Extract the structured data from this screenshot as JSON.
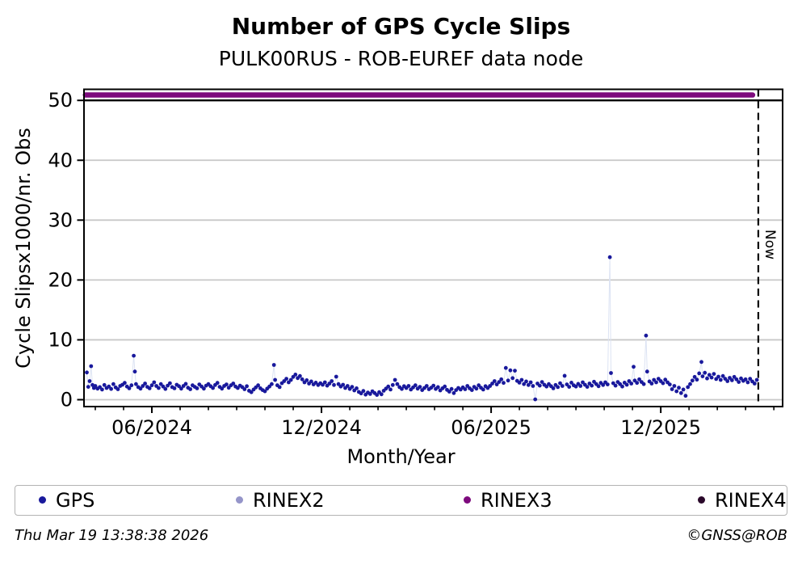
{
  "header": {
    "title": "Number of GPS Cycle Slips",
    "subtitle": "PULK00RUS - ROB-EUREF data node"
  },
  "chart_data": {
    "type": "scatter",
    "title": "Number of GPS Cycle Slips",
    "subtitle": "PULK00RUS - ROB-EUREF data node",
    "xlabel": "Month/Year",
    "ylabel": "Cycle Slipsx1000/nr. Obs",
    "x_unit": "months since 2024-04-01",
    "x_range": [
      -0.4,
      24.31
    ],
    "y_range": [
      -1.15,
      51.85
    ],
    "y_ticks": [
      0,
      10,
      20,
      30,
      40,
      50
    ],
    "x_major_ticks": [
      {
        "t": 2,
        "label": "06/2024"
      },
      {
        "t": 8,
        "label": "12/2024"
      },
      {
        "t": 14,
        "label": "06/2025"
      },
      {
        "t": 20,
        "label": "12/2025"
      }
    ],
    "x_minor_ticks_every_month": true,
    "grid": "horizontal",
    "grid_color": "#c8c8c8",
    "now_line": {
      "t": 23.45,
      "label": "Now"
    },
    "reference_line": {
      "y": 50,
      "color": "#000000"
    },
    "rinex3_line": {
      "y": 50.9,
      "t_start": -0.35,
      "t_end": 23.25,
      "color": "#7d0a7d"
    },
    "gps_color": "#19199c",
    "gps_connector_color": "#dce3f3",
    "gps_points": [
      [
        -0.3,
        4.55
      ],
      [
        -0.25,
        2.15
      ],
      [
        -0.2,
        3.1
      ],
      [
        -0.15,
        5.6
      ],
      [
        -0.1,
        2.45
      ],
      [
        -0.05,
        1.95
      ],
      [
        0.0,
        2.3
      ],
      [
        0.08,
        1.85
      ],
      [
        0.16,
        2.1
      ],
      [
        0.24,
        1.7
      ],
      [
        0.32,
        2.45
      ],
      [
        0.4,
        1.95
      ],
      [
        0.48,
        2.2
      ],
      [
        0.56,
        1.8
      ],
      [
        0.64,
        2.6
      ],
      [
        0.72,
        2.05
      ],
      [
        0.8,
        1.75
      ],
      [
        0.88,
        2.3
      ],
      [
        0.96,
        2.5
      ],
      [
        1.04,
        2.8
      ],
      [
        1.12,
        2.2
      ],
      [
        1.2,
        1.9
      ],
      [
        1.28,
        2.4
      ],
      [
        1.36,
        7.35
      ],
      [
        1.4,
        4.7
      ],
      [
        1.44,
        2.6
      ],
      [
        1.52,
        2.1
      ],
      [
        1.6,
        1.85
      ],
      [
        1.68,
        2.3
      ],
      [
        1.76,
        2.7
      ],
      [
        1.84,
        2.15
      ],
      [
        1.92,
        1.9
      ],
      [
        2.0,
        2.4
      ],
      [
        2.08,
        2.9
      ],
      [
        2.16,
        2.3
      ],
      [
        2.24,
        1.95
      ],
      [
        2.32,
        2.6
      ],
      [
        2.4,
        2.2
      ],
      [
        2.48,
        1.8
      ],
      [
        2.56,
        2.35
      ],
      [
        2.64,
        2.75
      ],
      [
        2.72,
        2.1
      ],
      [
        2.8,
        1.9
      ],
      [
        2.88,
        2.5
      ],
      [
        2.96,
        2.25
      ],
      [
        3.04,
        1.85
      ],
      [
        3.12,
        2.3
      ],
      [
        3.2,
        2.65
      ],
      [
        3.28,
        2.0
      ],
      [
        3.36,
        1.75
      ],
      [
        3.44,
        2.4
      ],
      [
        3.52,
        2.15
      ],
      [
        3.6,
        1.9
      ],
      [
        3.68,
        2.55
      ],
      [
        3.76,
        2.2
      ],
      [
        3.84,
        1.85
      ],
      [
        3.92,
        2.35
      ],
      [
        4.0,
        2.6
      ],
      [
        4.08,
        2.25
      ],
      [
        4.16,
        1.95
      ],
      [
        4.24,
        2.45
      ],
      [
        4.32,
        2.8
      ],
      [
        4.4,
        2.15
      ],
      [
        4.48,
        1.85
      ],
      [
        4.56,
        2.3
      ],
      [
        4.64,
        2.55
      ],
      [
        4.72,
        2.0
      ],
      [
        4.8,
        2.4
      ],
      [
        4.88,
        2.7
      ],
      [
        4.96,
        2.2
      ],
      [
        5.04,
        1.95
      ],
      [
        5.12,
        2.35
      ],
      [
        5.2,
        2.1
      ],
      [
        5.28,
        1.75
      ],
      [
        5.36,
        2.25
      ],
      [
        5.44,
        1.5
      ],
      [
        5.52,
        1.25
      ],
      [
        5.6,
        1.7
      ],
      [
        5.68,
        2.05
      ],
      [
        5.76,
        2.4
      ],
      [
        5.84,
        1.9
      ],
      [
        5.92,
        1.6
      ],
      [
        6.0,
        1.4
      ],
      [
        6.08,
        1.85
      ],
      [
        6.16,
        2.2
      ],
      [
        6.24,
        2.6
      ],
      [
        6.32,
        5.8
      ],
      [
        6.36,
        3.3
      ],
      [
        6.44,
        2.4
      ],
      [
        6.52,
        2.1
      ],
      [
        6.6,
        2.75
      ],
      [
        6.68,
        3.1
      ],
      [
        6.76,
        3.5
      ],
      [
        6.84,
        2.9
      ],
      [
        6.92,
        3.3
      ],
      [
        7.0,
        3.8
      ],
      [
        7.08,
        4.2
      ],
      [
        7.16,
        3.6
      ],
      [
        7.24,
        3.95
      ],
      [
        7.32,
        3.4
      ],
      [
        7.4,
        2.9
      ],
      [
        7.48,
        3.25
      ],
      [
        7.56,
        2.7
      ],
      [
        7.64,
        3.05
      ],
      [
        7.72,
        2.55
      ],
      [
        7.8,
        2.85
      ],
      [
        7.88,
        2.45
      ],
      [
        7.96,
        2.75
      ],
      [
        8.04,
        2.5
      ],
      [
        8.12,
        2.9
      ],
      [
        8.2,
        2.35
      ],
      [
        8.28,
        2.7
      ],
      [
        8.36,
        3.1
      ],
      [
        8.44,
        2.45
      ],
      [
        8.52,
        3.85
      ],
      [
        8.6,
        2.6
      ],
      [
        8.68,
        2.2
      ],
      [
        8.76,
        2.5
      ],
      [
        8.84,
        1.95
      ],
      [
        8.92,
        2.3
      ],
      [
        9.0,
        1.8
      ],
      [
        9.08,
        2.15
      ],
      [
        9.16,
        1.55
      ],
      [
        9.24,
        1.9
      ],
      [
        9.32,
        1.3
      ],
      [
        9.4,
        1.05
      ],
      [
        9.48,
        1.45
      ],
      [
        9.56,
        0.85
      ],
      [
        9.64,
        1.2
      ],
      [
        9.72,
        0.95
      ],
      [
        9.8,
        1.4
      ],
      [
        9.88,
        1.1
      ],
      [
        9.96,
        0.8
      ],
      [
        10.04,
        1.25
      ],
      [
        10.12,
        0.9
      ],
      [
        10.2,
        1.5
      ],
      [
        10.28,
        1.85
      ],
      [
        10.36,
        2.2
      ],
      [
        10.44,
        1.7
      ],
      [
        10.52,
        2.45
      ],
      [
        10.6,
        3.3
      ],
      [
        10.68,
        2.6
      ],
      [
        10.76,
        2.1
      ],
      [
        10.84,
        1.8
      ],
      [
        10.92,
        2.25
      ],
      [
        11.0,
        1.95
      ],
      [
        11.08,
        2.3
      ],
      [
        11.16,
        1.7
      ],
      [
        11.24,
        2.05
      ],
      [
        11.32,
        2.4
      ],
      [
        11.4,
        1.85
      ],
      [
        11.48,
        2.15
      ],
      [
        11.56,
        1.6
      ],
      [
        11.64,
        1.95
      ],
      [
        11.72,
        2.3
      ],
      [
        11.8,
        1.75
      ],
      [
        11.88,
        2.0
      ],
      [
        11.96,
        2.35
      ],
      [
        12.04,
        1.8
      ],
      [
        12.12,
        2.1
      ],
      [
        12.2,
        1.55
      ],
      [
        12.28,
        1.9
      ],
      [
        12.36,
        2.2
      ],
      [
        12.44,
        1.65
      ],
      [
        12.52,
        1.35
      ],
      [
        12.6,
        1.8
      ],
      [
        12.68,
        1.1
      ],
      [
        12.76,
        1.6
      ],
      [
        12.84,
        1.95
      ],
      [
        12.92,
        1.7
      ],
      [
        13.0,
        2.05
      ],
      [
        13.08,
        1.75
      ],
      [
        13.16,
        2.3
      ],
      [
        13.24,
        1.9
      ],
      [
        13.32,
        1.6
      ],
      [
        13.4,
        2.15
      ],
      [
        13.48,
        1.85
      ],
      [
        13.56,
        2.4
      ],
      [
        13.64,
        2.0
      ],
      [
        13.72,
        1.7
      ],
      [
        13.8,
        2.25
      ],
      [
        13.88,
        1.95
      ],
      [
        13.96,
        2.3
      ],
      [
        14.04,
        2.7
      ],
      [
        14.12,
        3.1
      ],
      [
        14.2,
        2.55
      ],
      [
        14.28,
        2.95
      ],
      [
        14.36,
        3.4
      ],
      [
        14.44,
        2.8
      ],
      [
        14.52,
        5.3
      ],
      [
        14.6,
        3.2
      ],
      [
        14.68,
        4.9
      ],
      [
        14.76,
        3.6
      ],
      [
        14.84,
        4.85
      ],
      [
        14.92,
        3.15
      ],
      [
        15.0,
        2.85
      ],
      [
        15.08,
        3.3
      ],
      [
        15.16,
        2.6
      ],
      [
        15.24,
        3.05
      ],
      [
        15.32,
        2.45
      ],
      [
        15.4,
        2.9
      ],
      [
        15.48,
        2.3
      ],
      [
        15.56,
        0.05
      ],
      [
        15.64,
        2.7
      ],
      [
        15.72,
        2.35
      ],
      [
        15.8,
        2.95
      ],
      [
        15.88,
        2.5
      ],
      [
        15.96,
        2.2
      ],
      [
        16.04,
        2.6
      ],
      [
        16.12,
        2.25
      ],
      [
        16.2,
        1.9
      ],
      [
        16.28,
        2.45
      ],
      [
        16.36,
        2.1
      ],
      [
        16.44,
        2.75
      ],
      [
        16.52,
        2.3
      ],
      [
        16.6,
        4.0
      ],
      [
        16.68,
        2.55
      ],
      [
        16.76,
        2.15
      ],
      [
        16.84,
        2.85
      ],
      [
        16.92,
        2.4
      ],
      [
        17.0,
        2.2
      ],
      [
        17.08,
        2.65
      ],
      [
        17.16,
        2.3
      ],
      [
        17.24,
        2.9
      ],
      [
        17.32,
        2.5
      ],
      [
        17.4,
        2.15
      ],
      [
        17.48,
        2.7
      ],
      [
        17.56,
        2.35
      ],
      [
        17.64,
        3.0
      ],
      [
        17.72,
        2.6
      ],
      [
        17.8,
        2.25
      ],
      [
        17.88,
        2.8
      ],
      [
        17.96,
        2.45
      ],
      [
        18.04,
        2.9
      ],
      [
        18.12,
        2.55
      ],
      [
        18.2,
        23.8
      ],
      [
        18.24,
        4.45
      ],
      [
        18.32,
        2.75
      ],
      [
        18.4,
        2.35
      ],
      [
        18.48,
        2.95
      ],
      [
        18.56,
        2.6
      ],
      [
        18.64,
        2.2
      ],
      [
        18.72,
        2.85
      ],
      [
        18.8,
        2.5
      ],
      [
        18.88,
        3.1
      ],
      [
        18.96,
        2.7
      ],
      [
        19.04,
        5.5
      ],
      [
        19.08,
        3.2
      ],
      [
        19.16,
        2.8
      ],
      [
        19.24,
        3.4
      ],
      [
        19.32,
        2.95
      ],
      [
        19.4,
        2.6
      ],
      [
        19.48,
        10.7
      ],
      [
        19.52,
        4.7
      ],
      [
        19.6,
        3.05
      ],
      [
        19.68,
        2.7
      ],
      [
        19.76,
        3.3
      ],
      [
        19.84,
        2.9
      ],
      [
        19.92,
        3.5
      ],
      [
        20.0,
        3.1
      ],
      [
        20.08,
        2.75
      ],
      [
        20.16,
        3.35
      ],
      [
        20.24,
        2.9
      ],
      [
        20.32,
        2.55
      ],
      [
        20.4,
        1.75
      ],
      [
        20.48,
        2.3
      ],
      [
        20.56,
        1.4
      ],
      [
        20.64,
        2.0
      ],
      [
        20.72,
        1.1
      ],
      [
        20.8,
        1.7
      ],
      [
        20.88,
        0.65
      ],
      [
        20.96,
        2.1
      ],
      [
        21.04,
        2.6
      ],
      [
        21.12,
        3.2
      ],
      [
        21.2,
        3.8
      ],
      [
        21.28,
        3.35
      ],
      [
        21.36,
        4.4
      ],
      [
        21.44,
        6.3
      ],
      [
        21.48,
        3.9
      ],
      [
        21.56,
        4.5
      ],
      [
        21.64,
        3.55
      ],
      [
        21.72,
        4.15
      ],
      [
        21.8,
        3.7
      ],
      [
        21.88,
        4.3
      ],
      [
        21.96,
        3.45
      ],
      [
        22.04,
        3.85
      ],
      [
        22.12,
        3.3
      ],
      [
        22.2,
        3.95
      ],
      [
        22.28,
        3.5
      ],
      [
        22.36,
        3.1
      ],
      [
        22.44,
        3.65
      ],
      [
        22.52,
        3.25
      ],
      [
        22.6,
        3.8
      ],
      [
        22.68,
        3.4
      ],
      [
        22.76,
        2.95
      ],
      [
        22.84,
        3.55
      ],
      [
        22.92,
        3.15
      ],
      [
        23.0,
        3.4
      ],
      [
        23.08,
        2.9
      ],
      [
        23.16,
        3.5
      ],
      [
        23.24,
        3.05
      ],
      [
        23.32,
        2.7
      ],
      [
        23.4,
        3.3
      ]
    ]
  },
  "legend": {
    "items": [
      {
        "label": "GPS",
        "color": "#19199c"
      },
      {
        "label": "RINEX2",
        "color": "#9595c9"
      },
      {
        "label": "RINEX3",
        "color": "#7d0a7d"
      },
      {
        "label": "RINEX4",
        "color": "#2a082a"
      }
    ]
  },
  "footer": {
    "timestamp": "Thu Mar 19 13:38:38 2026",
    "copyright": "©GNSS@ROB"
  }
}
